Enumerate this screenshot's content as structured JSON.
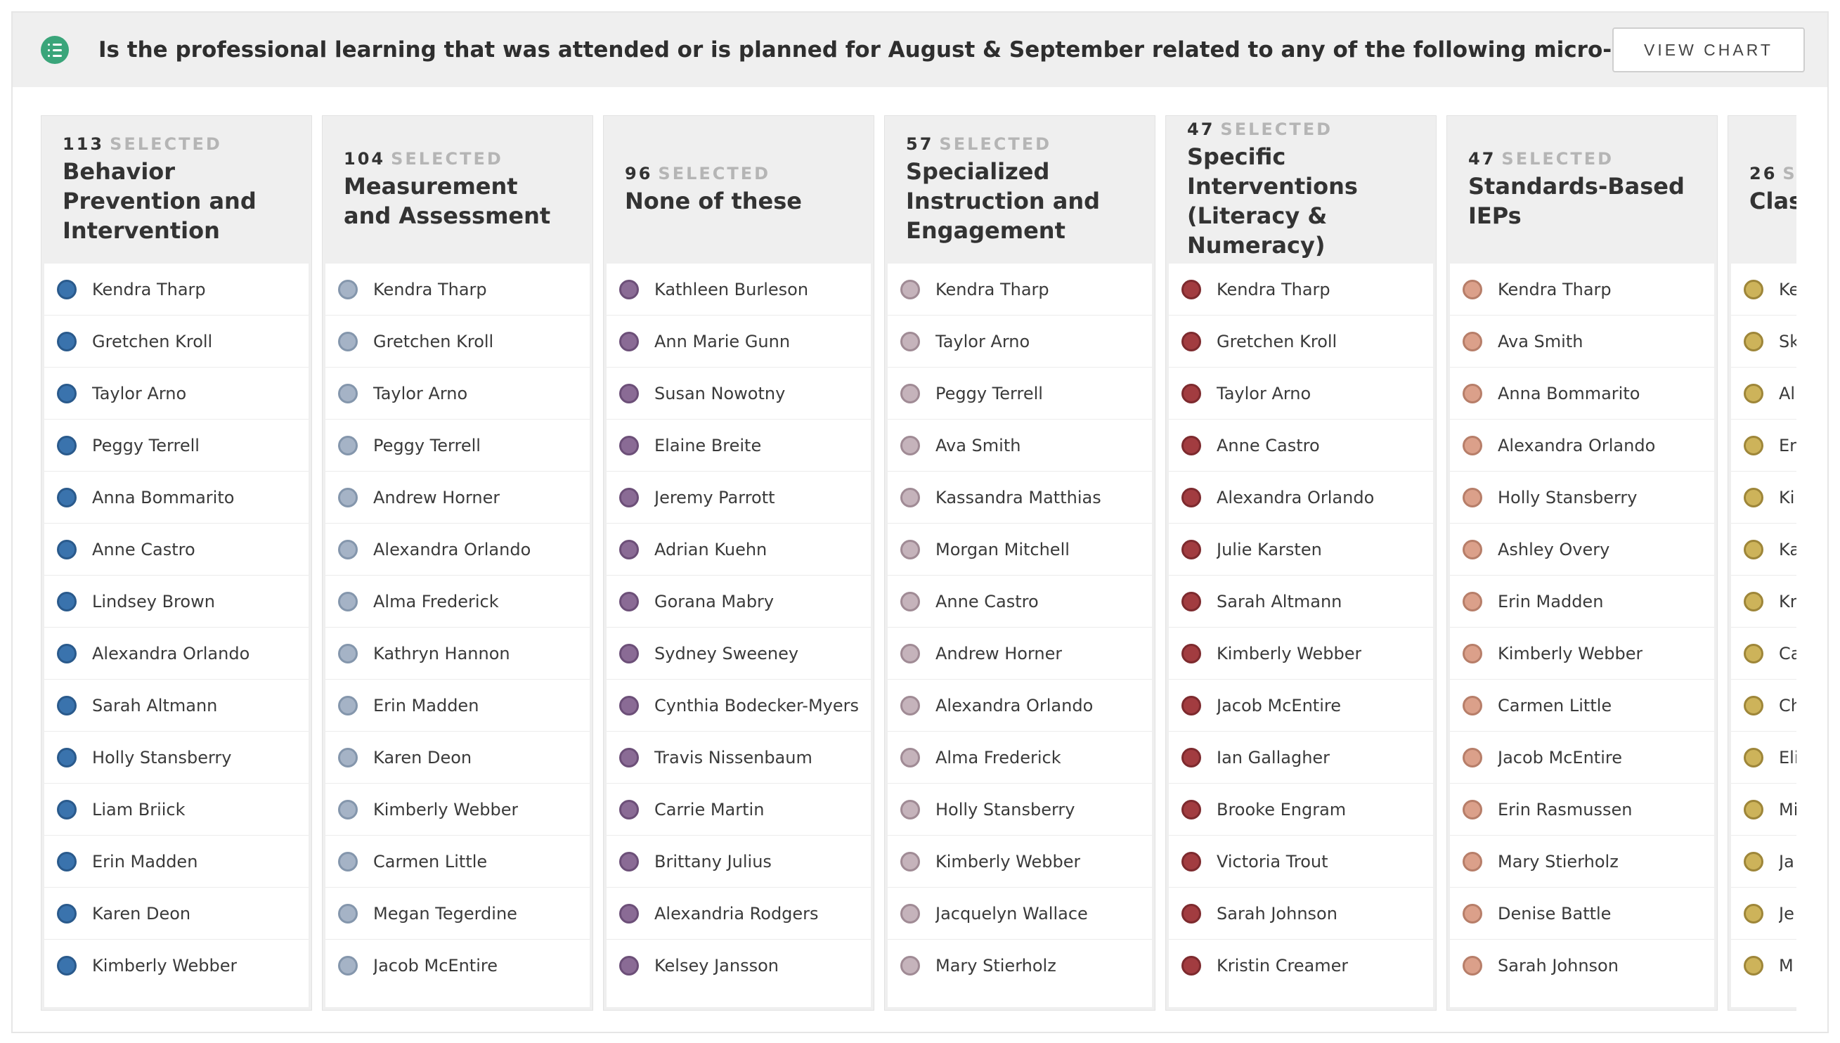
{
  "question": "Is the professional learning that was attended or is planned for August & September related to any of the following micro-credential topics?",
  "view_chart_label": "VIEW CHART",
  "selected_word": "SELECTED",
  "columns": [
    {
      "count": "113",
      "title": "Behavior Prevention and Intervention",
      "fill": "#3a73ad",
      "border": "#2a5a8c",
      "names": [
        "Kendra Tharp",
        "Gretchen Kroll",
        "Taylor Arno",
        "Peggy Terrell",
        "Anna Bommarito",
        "Anne Castro",
        "Lindsey Brown",
        "Alexandra Orlando",
        "Sarah Altmann",
        "Holly Stansberry",
        "Liam Briick",
        "Erin Madden",
        "Karen Deon",
        "Kimberly Webber"
      ]
    },
    {
      "count": "104",
      "title": "Measurement and Assessment",
      "fill": "#a5b3c6",
      "border": "#8496ac",
      "names": [
        "Kendra Tharp",
        "Gretchen Kroll",
        "Taylor Arno",
        "Peggy Terrell",
        "Andrew Horner",
        "Alexandra Orlando",
        "Alma Frederick",
        "Kathryn Hannon",
        "Erin Madden",
        "Karen Deon",
        "Kimberly Webber",
        "Carmen Little",
        "Megan Tegerdine",
        "Jacob McEntire"
      ]
    },
    {
      "count": "96",
      "title": "None of these",
      "fill": "#8a6b95",
      "border": "#6c4f78",
      "names": [
        "Kathleen Burleson",
        "Ann Marie Gunn",
        "Susan Nowotny",
        "Elaine Breite",
        "Jeremy Parrott",
        "Adrian Kuehn",
        "Gorana Mabry",
        "Sydney Sweeney",
        "Cynthia Bodecker-Myers",
        "Travis Nissenbaum",
        "Carrie Martin",
        "Brittany Julius",
        "Alexandria Rodgers",
        "Kelsey Jansson"
      ]
    },
    {
      "count": "57",
      "title": "Specialized Instruction and Engagement",
      "fill": "#c5b3bb",
      "border": "#a08b95",
      "names": [
        "Kendra Tharp",
        "Taylor Arno",
        "Peggy Terrell",
        "Ava Smith",
        "Kassandra Matthias",
        "Morgan Mitchell",
        "Anne Castro",
        "Andrew Horner",
        "Alexandra Orlando",
        "Alma Frederick",
        "Holly Stansberry",
        "Kimberly Webber",
        "Jacquelyn Wallace",
        "Mary Stierholz"
      ]
    },
    {
      "count": "47",
      "title": "Specific Interventions (Literacy & Numeracy)",
      "fill": "#a23c40",
      "border": "#7d2a2e",
      "names": [
        "Kendra Tharp",
        "Gretchen Kroll",
        "Taylor Arno",
        "Anne Castro",
        "Alexandra Orlando",
        "Julie Karsten",
        "Sarah Altmann",
        "Kimberly Webber",
        "Jacob McEntire",
        "Ian Gallagher",
        "Brooke Engram",
        "Victoria Trout",
        "Sarah Johnson",
        "Kristin Creamer"
      ]
    },
    {
      "count": "47",
      "title": "Standards-Based IEPs",
      "fill": "#dba08a",
      "border": "#b77e69",
      "names": [
        "Kendra Tharp",
        "Ava Smith",
        "Anna Bommarito",
        "Alexandra Orlando",
        "Holly Stansberry",
        "Ashley Overy",
        "Erin Madden",
        "Kimberly Webber",
        "Carmen Little",
        "Jacob McEntire",
        "Erin Rasmussen",
        "Mary Stierholz",
        "Denise Battle",
        "Sarah Johnson"
      ]
    },
    {
      "count": "26",
      "title": "Clas Syst",
      "fill": "#cdb35a",
      "border": "#9e8639",
      "names": [
        "Ke",
        "Sk",
        "Al",
        "Er",
        "Ki",
        "Ka",
        "Kr",
        "Ca",
        "Ch",
        "Eli",
        "Mi",
        "Ja",
        "Je",
        "M"
      ]
    }
  ]
}
